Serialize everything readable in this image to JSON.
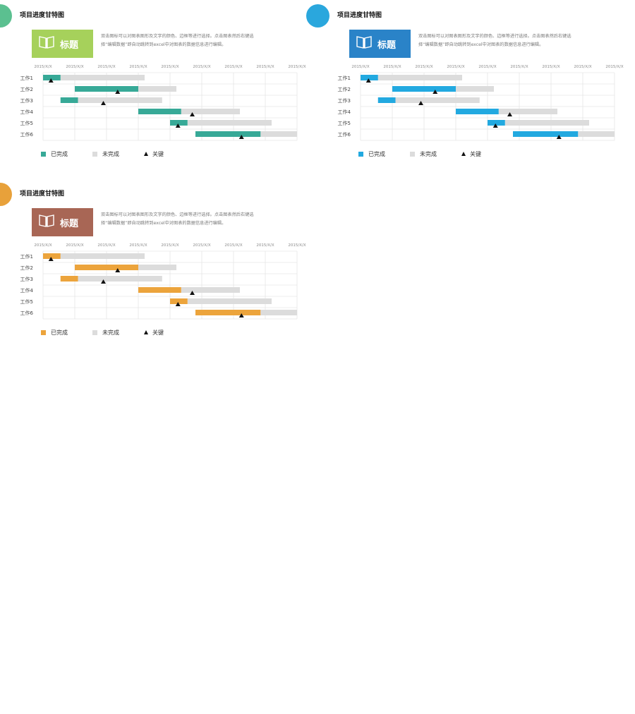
{
  "chart_data": [
    {
      "type": "bar",
      "accent_color": "#37a997",
      "circle_color": "#5bc090",
      "badge_color": "#a6d15b",
      "title": "项目进度甘特图",
      "badge_label": "标题",
      "badge_icon": "open-book-icon",
      "description": [
        "双击图标可以对图表图形及文字的颜色、边框等进行选择。点击图表然后右键选",
        "择“编辑数据”即自动跳转到excel中对图表的数据信息进行编辑。"
      ],
      "xlabel": "",
      "ylabel": "",
      "x_tick_labels": [
        "2015/X/X",
        "2015/X/X",
        "2015/X/X",
        "2015/X/X",
        "2015/X/X",
        "2015/X/X",
        "2015/X/X",
        "2015/X/X",
        "2015/X/X"
      ],
      "xlim": [
        0,
        8
      ],
      "categories": [
        "工作1",
        "工作2",
        "工作3",
        "工作4",
        "工作5",
        "工作6"
      ],
      "series": [
        {
          "name": "已完成",
          "color": "#37a997",
          "start": [
            0,
            1,
            0.55,
            3,
            4,
            4.8
          ],
          "duration": [
            0.55,
            2,
            0.55,
            1.35,
            0.55,
            2.05
          ]
        },
        {
          "name": "未完成",
          "color": "#dcdcdc",
          "start": [
            0.55,
            3,
            1.1,
            4.35,
            4.55,
            6.85
          ],
          "duration": [
            2.65,
            1.2,
            2.65,
            1.85,
            2.65,
            1.15
          ]
        }
      ],
      "milestones": {
        "name": "关键",
        "x": [
          0.25,
          2.35,
          1.9,
          4.7,
          4.25,
          6.25
        ]
      },
      "legend": {
        "position": "bottom-left",
        "items": [
          {
            "label": "已完成",
            "marker": "square",
            "color": "#37a997"
          },
          {
            "label": "未完成",
            "marker": "square",
            "color": "#dcdcdc"
          },
          {
            "label": "关键",
            "marker": "triangle",
            "color": "#111111"
          }
        ]
      },
      "grid": true
    },
    {
      "type": "bar",
      "accent_color": "#22a9e0",
      "circle_color": "#2aa7dd",
      "badge_color": "#2a83c8",
      "title": "项目进度甘特图",
      "badge_label": "标题",
      "badge_icon": "open-book-icon",
      "description": [
        "双击图标可以对图表图形及文字的颜色、边框等进行选择。点击图表然后右键选",
        "择“编辑数据”即自动跳转到excel中对图表的数据信息进行编辑。"
      ],
      "xlabel": "",
      "ylabel": "",
      "x_tick_labels": [
        "2015/X/X",
        "2015/X/X",
        "2015/X/X",
        "2015/X/X",
        "2015/X/X",
        "2015/X/X",
        "2015/X/X",
        "2015/X/X",
        "2015/X/X"
      ],
      "xlim": [
        0,
        8
      ],
      "categories": [
        "工作1",
        "工作2",
        "工作3",
        "工作4",
        "工作5",
        "工作6"
      ],
      "series": [
        {
          "name": "已完成",
          "color": "#22a9e0",
          "start": [
            0,
            1,
            0.55,
            3,
            4,
            4.8
          ],
          "duration": [
            0.55,
            2,
            0.55,
            1.35,
            0.55,
            2.05
          ]
        },
        {
          "name": "未完成",
          "color": "#dcdcdc",
          "start": [
            0.55,
            3,
            1.1,
            4.35,
            4.55,
            6.85
          ],
          "duration": [
            2.65,
            1.2,
            2.65,
            1.85,
            2.65,
            1.15
          ]
        }
      ],
      "milestones": {
        "name": "关键",
        "x": [
          0.25,
          2.35,
          1.9,
          4.7,
          4.25,
          6.25
        ]
      },
      "legend": {
        "position": "bottom-left",
        "items": [
          {
            "label": "已完成",
            "marker": "square",
            "color": "#22a9e0"
          },
          {
            "label": "未完成",
            "marker": "square",
            "color": "#dcdcdc"
          },
          {
            "label": "关键",
            "marker": "triangle",
            "color": "#111111"
          }
        ]
      },
      "grid": true
    },
    {
      "type": "bar",
      "accent_color": "#eca43c",
      "circle_color": "#e8a13a",
      "badge_color": "#a86655",
      "title": "项目进度甘特图",
      "badge_label": "标题",
      "badge_icon": "open-book-icon",
      "description": [
        "双击图标可以对图表图形及文字的颜色、边框等进行选择。点击图表然后右键选",
        "择“编辑数据”即自动跳转到excel中对图表的数据信息进行编辑。"
      ],
      "xlabel": "",
      "ylabel": "",
      "x_tick_labels": [
        "2015/X/X",
        "2015/X/X",
        "2015/X/X",
        "2015/X/X",
        "2015/X/X",
        "2015/X/X",
        "2015/X/X",
        "2015/X/X",
        "2015/X/X"
      ],
      "xlim": [
        0,
        8
      ],
      "categories": [
        "工作1",
        "工作2",
        "工作3",
        "工作4",
        "工作5",
        "工作6"
      ],
      "series": [
        {
          "name": "已完成",
          "color": "#eca43c",
          "start": [
            0,
            1,
            0.55,
            3,
            4,
            4.8
          ],
          "duration": [
            0.55,
            2,
            0.55,
            1.35,
            0.55,
            2.05
          ]
        },
        {
          "name": "未完成",
          "color": "#dcdcdc",
          "start": [
            0.55,
            3,
            1.1,
            4.35,
            4.55,
            6.85
          ],
          "duration": [
            2.65,
            1.2,
            2.65,
            1.85,
            2.65,
            1.15
          ]
        }
      ],
      "milestones": {
        "name": "关键",
        "x": [
          0.25,
          2.35,
          1.9,
          4.7,
          4.25,
          6.25
        ]
      },
      "legend": {
        "position": "bottom-left",
        "items": [
          {
            "label": "已完成",
            "marker": "square",
            "color": "#eca43c"
          },
          {
            "label": "未完成",
            "marker": "square",
            "color": "#dcdcdc"
          },
          {
            "label": "关键",
            "marker": "triangle",
            "color": "#111111"
          }
        ]
      },
      "grid": true
    }
  ]
}
